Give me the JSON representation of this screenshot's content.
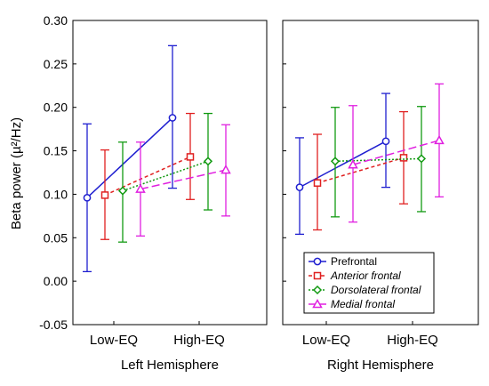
{
  "chart_data": {
    "type": "line",
    "ylabel": "Beta power (µ²/Hz)",
    "ylim": [
      -0.05,
      0.3
    ],
    "yticks": [
      -0.05,
      0.0,
      0.05,
      0.1,
      0.15,
      0.2,
      0.25,
      0.3
    ],
    "ytick_labels": [
      "-0.05",
      "0.00",
      "0.05",
      "0.10",
      "0.15",
      "0.20",
      "0.25",
      "0.30"
    ],
    "categories": [
      "Low-EQ",
      "High-EQ"
    ],
    "grid": false,
    "legend_position": "bottom-right of right panel",
    "panels": [
      {
        "xlabel": "Left Hemisphere",
        "series": [
          {
            "name": "Prefrontal",
            "color": "#1f1fd0",
            "marker": "circle",
            "dash": "solid",
            "values": [
              0.096,
              0.188
            ],
            "lower": [
              0.011,
              0.107
            ],
            "upper": [
              0.181,
              0.271
            ]
          },
          {
            "name": "Anterior frontal",
            "color": "#e02020",
            "marker": "square",
            "dash": "short-dash",
            "values": [
              0.099,
              0.143
            ],
            "lower": [
              0.048,
              0.094
            ],
            "upper": [
              0.151,
              0.193
            ]
          },
          {
            "name": "Dorsolateral frontal",
            "color": "#129a12",
            "marker": "diamond",
            "dash": "dot",
            "values": [
              0.104,
              0.138
            ],
            "lower": [
              0.045,
              0.082
            ],
            "upper": [
              0.16,
              0.193
            ]
          },
          {
            "name": "Medial frontal",
            "color": "#e020e0",
            "marker": "triangle",
            "dash": "long-dash",
            "values": [
              0.106,
              0.128
            ],
            "lower": [
              0.052,
              0.075
            ],
            "upper": [
              0.16,
              0.18
            ]
          }
        ]
      },
      {
        "xlabel": "Right Hemisphere",
        "series": [
          {
            "name": "Prefrontal",
            "color": "#1f1fd0",
            "marker": "circle",
            "dash": "solid",
            "values": [
              0.108,
              0.161
            ],
            "lower": [
              0.054,
              0.108
            ],
            "upper": [
              0.165,
              0.216
            ]
          },
          {
            "name": "Anterior frontal",
            "color": "#e02020",
            "marker": "square",
            "dash": "short-dash",
            "values": [
              0.113,
              0.142
            ],
            "lower": [
              0.059,
              0.089
            ],
            "upper": [
              0.169,
              0.195
            ]
          },
          {
            "name": "Dorsolateral frontal",
            "color": "#129a12",
            "marker": "diamond",
            "dash": "dot",
            "values": [
              0.138,
              0.141
            ],
            "lower": [
              0.074,
              0.08
            ],
            "upper": [
              0.2,
              0.201
            ]
          },
          {
            "name": "Medial frontal",
            "color": "#e020e0",
            "marker": "triangle",
            "dash": "long-dash",
            "values": [
              0.134,
              0.162
            ],
            "lower": [
              0.068,
              0.097
            ],
            "upper": [
              0.202,
              0.227
            ]
          }
        ]
      }
    ]
  }
}
